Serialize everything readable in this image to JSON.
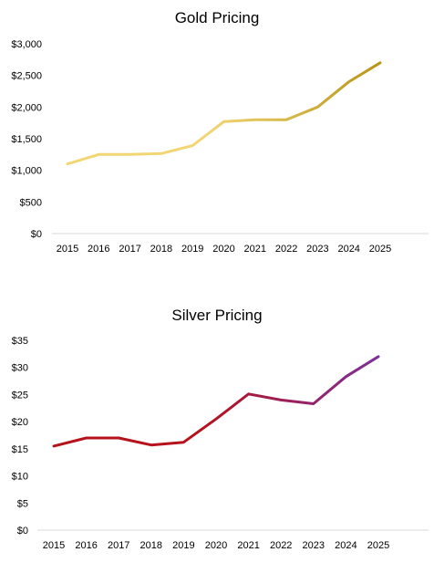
{
  "chart_data": [
    {
      "type": "line",
      "title": "Gold Pricing",
      "categories": [
        "2015",
        "2016",
        "2017",
        "2018",
        "2019",
        "2020",
        "2021",
        "2022",
        "2023",
        "2024",
        "2025"
      ],
      "values": [
        1100,
        1250,
        1250,
        1265,
        1390,
        1770,
        1800,
        1800,
        2000,
        2400,
        2700
      ],
      "ylim": [
        0,
        3000
      ],
      "yticks": [
        "$0",
        "$500",
        "$1,000",
        "$1,500",
        "$2,000",
        "$2,500",
        "$3,000"
      ],
      "ytick_values": [
        0,
        500,
        1000,
        1500,
        2000,
        2500,
        3000
      ],
      "gradient": [
        "#f2d675",
        "#b89418"
      ],
      "grid": false
    },
    {
      "type": "line",
      "title": "Silver Pricing",
      "categories": [
        "2015",
        "2016",
        "2017",
        "2018",
        "2019",
        "2020",
        "2021",
        "2022",
        "2023",
        "2024",
        "2025"
      ],
      "values": [
        15.5,
        17,
        17,
        15.7,
        16.2,
        20.5,
        25.1,
        24,
        23.3,
        28.3,
        32
      ],
      "ylim": [
        0,
        35
      ],
      "yticks": [
        "$0",
        "$5",
        "$10",
        "$15",
        "$20",
        "$25",
        "$30",
        "$35"
      ],
      "ytick_values": [
        0,
        5,
        10,
        15,
        20,
        25,
        30,
        35
      ],
      "gradient": [
        "#b5121b",
        "#7f2f9a"
      ],
      "grid": false
    }
  ]
}
